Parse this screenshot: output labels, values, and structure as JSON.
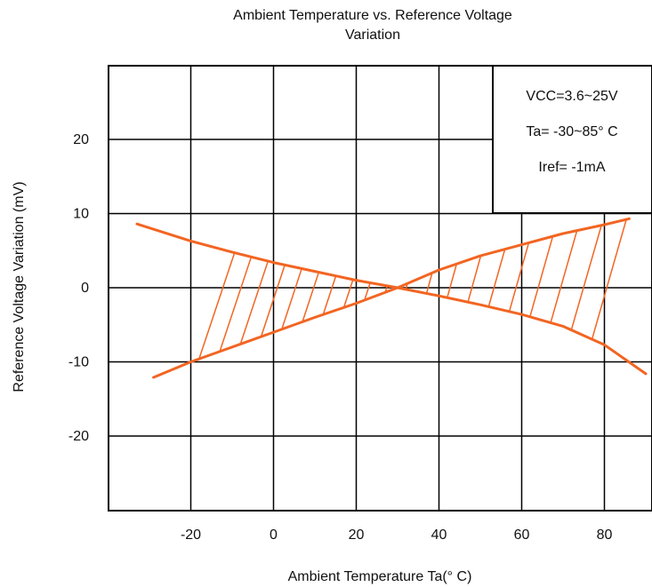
{
  "chart_data": {
    "type": "line",
    "title_lines": [
      "Ambient Temperature vs. Reference Voltage",
      "Variation"
    ],
    "xlabel": "Ambient Temperature Ta(° C)",
    "ylabel": "Reference Voltage Variation (mV)",
    "xlim": [
      -40,
      90
    ],
    "ylim": [
      -30,
      30
    ],
    "x_ticks": [
      -20,
      0,
      20,
      40,
      60,
      80
    ],
    "y_ticks": [
      20,
      10,
      0,
      -10,
      -20
    ],
    "grid": true,
    "legend_box": {
      "position": "top-right",
      "lines": [
        "VCC=3.6~25V",
        "Ta= -30~85° C",
        "Iref= -1mA"
      ]
    },
    "series": [
      {
        "x": [
          -33,
          -20,
          -10,
          0,
          10,
          20,
          30,
          40,
          50,
          60,
          70,
          80,
          90
        ],
        "y": [
          8.6,
          6.3,
          4.8,
          3.4,
          2.2,
          1.0,
          0.0,
          -1.1,
          -2.3,
          -3.6,
          -5.2,
          -7.7,
          -11.6
        ]
      },
      {
        "x": [
          -29,
          -20,
          -10,
          0,
          10,
          20,
          30,
          40,
          50,
          60,
          70,
          80,
          86
        ],
        "y": [
          -12.1,
          -10.0,
          -8.0,
          -6.0,
          -4.0,
          -2.1,
          0.0,
          2.4,
          4.3,
          5.8,
          7.3,
          8.5,
          9.3
        ]
      }
    ],
    "hatched_region": {
      "x_range": [
        -20,
        80
      ],
      "color": "#f26522"
    },
    "line_color": "#f26522",
    "grid_color": "#000000"
  }
}
